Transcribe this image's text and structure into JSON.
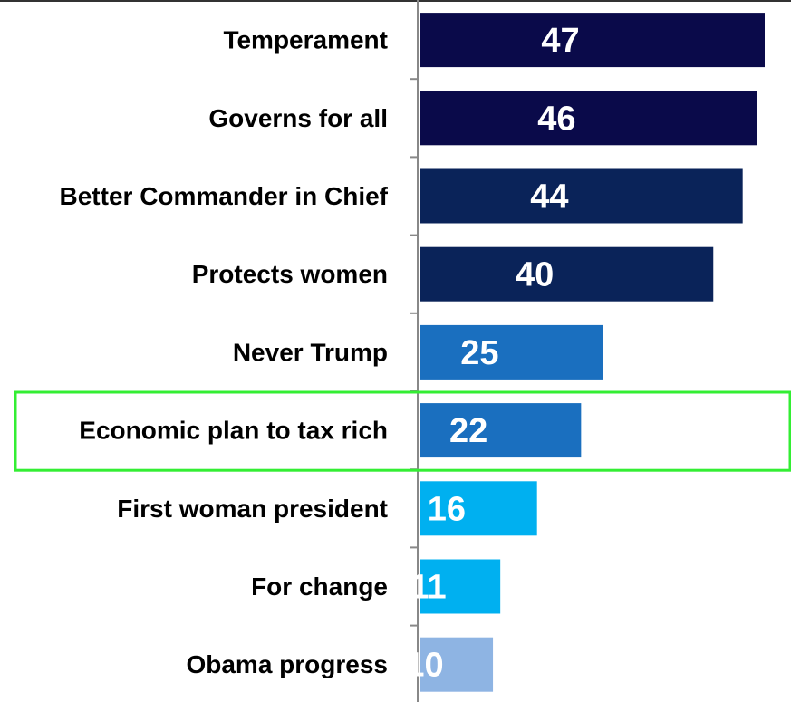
{
  "chart_data": {
    "type": "bar",
    "orientation": "horizontal",
    "categories": [
      "Temperament",
      "Governs for all",
      "Better Commander in Chief",
      "Protects women",
      "Never Trump",
      "Economic plan to tax rich",
      "First woman president",
      "For change",
      "Obama progress"
    ],
    "values": [
      47,
      46,
      44,
      40,
      25,
      22,
      16,
      11,
      10
    ],
    "value_labels": [
      "47",
      "46",
      "44",
      "40",
      "25",
      "22",
      "16",
      "11",
      "10"
    ],
    "bar_colors": [
      "#0a0a4a",
      "#0a0a4a",
      "#0a2359",
      "#0a2359",
      "#1a6fbf",
      "#1a6fbf",
      "#00b0f0",
      "#00b0f0",
      "#8eb4e3"
    ],
    "highlighted_category": "Economic plan to tax rich",
    "highlight_color": "#33ee33",
    "xlim": [
      0,
      50
    ],
    "grid": false,
    "title": "",
    "xlabel": "",
    "ylabel": ""
  }
}
